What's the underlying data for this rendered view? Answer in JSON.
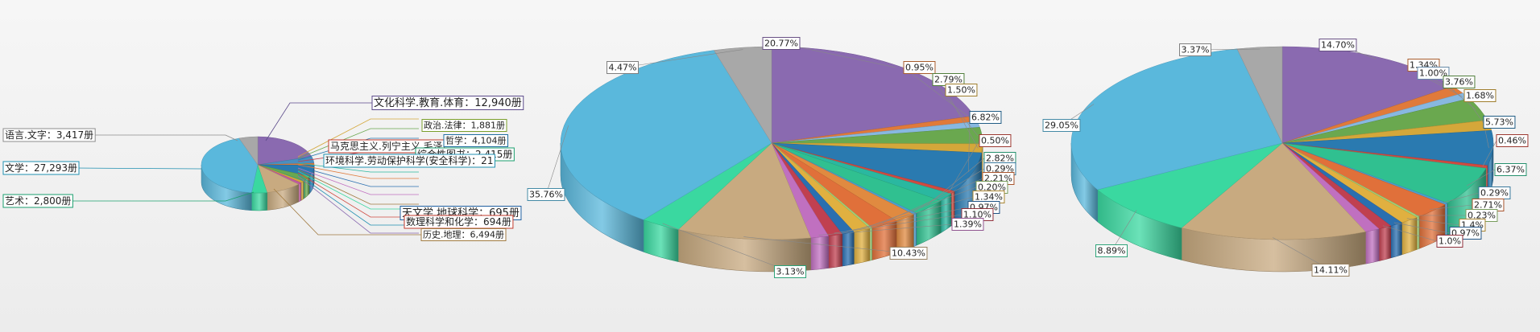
{
  "chart_data": [
    {
      "type": "pie",
      "labels_shown": [
        {
          "text": "文化科学.教育.体育：12,940册",
          "color": "#5b4a8a"
        },
        {
          "text": "语言.文字：3,417册",
          "color": "#8c8c8c"
        },
        {
          "text": "文学：27,293册",
          "color": "#1f8fb0"
        },
        {
          "text": "艺术：2,800册",
          "color": "#1a9e6e"
        },
        {
          "text": "马克思主义.列宁主义.毛泽",
          "color": "#c0392b"
        },
        {
          "text": "综合性图书：2,415册",
          "color": "#1a9e6e"
        },
        {
          "text": "环境科学.劳动保护科学(安全科学)：21",
          "color": "#1f8fb0"
        },
        {
          "text": "政治.法律：1,881册",
          "color": "#7a9e2a"
        },
        {
          "text": "哲学：4,104册",
          "color": "#1f6fa0"
        },
        {
          "text": "天文学.地球科学：695册",
          "color": "#1f5fa0"
        },
        {
          "text": "数理科学和化学：694册",
          "color": "#c0392b"
        },
        {
          "text": "历史.地理：6,494册",
          "color": "#a07a40"
        }
      ],
      "slices": [
        {
          "label": "文化科学.教育.体育",
          "value": 12940,
          "color": "#8a6ab0"
        },
        {
          "label": "综合性图书",
          "value": 2415,
          "color": "#4a8fc0"
        },
        {
          "label": "马克思主义.列宁主义.毛泽东思想.邓小平理论",
          "value": 700,
          "color": "#e07a3a"
        },
        {
          "label": "哲学",
          "value": 4104,
          "color": "#2a7ab0"
        },
        {
          "label": "政治.法律",
          "value": 1881,
          "color": "#6aa84f"
        },
        {
          "label": "环境科学.劳动保护科学(安全科学)",
          "value": 210,
          "color": "#2ab8a0"
        },
        {
          "label": "天文学.地球科学",
          "value": 695,
          "color": "#d4a73a"
        },
        {
          "label": "数理科学和化学",
          "value": 694,
          "color": "#c05aa0"
        },
        {
          "label": "历史.地理",
          "value": 6494,
          "color": "#c8aa80"
        },
        {
          "label": "艺术",
          "value": 2800,
          "color": "#3ad8a0"
        },
        {
          "label": "文学",
          "value": 27293,
          "color": "#5ab8dc"
        },
        {
          "label": "语言.文字",
          "value": 3417,
          "color": "#a8a8a8"
        }
      ]
    },
    {
      "type": "pie",
      "slices": [
        {
          "label": "20.77%",
          "value": 20.77,
          "color": "#8a6ab0"
        },
        {
          "label": "0.95%",
          "value": 0.95,
          "color": "#e07a3a"
        },
        {
          "label": "",
          "value": 1.0,
          "color": "#88b8e0"
        },
        {
          "label": "2.79%",
          "value": 2.79,
          "color": "#6aa84f"
        },
        {
          "label": "1.50%",
          "value": 1.5,
          "color": "#d4a73a"
        },
        {
          "label": "6.82%",
          "value": 6.82,
          "color": "#2a7ab0"
        },
        {
          "label": "0.50%",
          "value": 0.5,
          "color": "#d04a40"
        },
        {
          "label": "",
          "value": 1.4,
          "color": "#2ab8a0"
        },
        {
          "label": "2.82%",
          "value": 2.82,
          "color": "#30c090"
        },
        {
          "label": "0.29%",
          "value": 0.29,
          "color": "#4aa0d0"
        },
        {
          "label": "",
          "value": 1.7,
          "color": "#e08a40"
        },
        {
          "label": "2.21%",
          "value": 2.21,
          "color": "#e0703a"
        },
        {
          "label": "0.20%",
          "value": 0.2,
          "color": "#9ed07a"
        },
        {
          "label": "1.34%",
          "value": 1.34,
          "color": "#e0b040"
        },
        {
          "label": "0.97%",
          "value": 0.97,
          "color": "#2a6fb0"
        },
        {
          "label": "1.10%",
          "value": 1.1,
          "color": "#c04050"
        },
        {
          "label": "1.39%",
          "value": 1.39,
          "color": "#c070c0"
        },
        {
          "label": "10.43%",
          "value": 10.43,
          "color": "#c8aa80"
        },
        {
          "label": "3.13%",
          "value": 3.13,
          "color": "#3ad8a0"
        },
        {
          "label": "35.76%",
          "value": 35.76,
          "color": "#5ab8dc"
        },
        {
          "label": "4.47%",
          "value": 4.47,
          "color": "#a8a8a8"
        }
      ]
    },
    {
      "type": "pie",
      "slices": [
        {
          "label": "14.70%",
          "value": 14.7,
          "color": "#8a6ab0"
        },
        {
          "label": "1.34%",
          "value": 1.34,
          "color": "#e07a3a"
        },
        {
          "label": "1.00%",
          "value": 1.0,
          "color": "#88b8e0"
        },
        {
          "label": "3.76%",
          "value": 3.76,
          "color": "#6aa84f"
        },
        {
          "label": "1.68%",
          "value": 1.68,
          "color": "#d4a73a"
        },
        {
          "label": "5.73%",
          "value": 5.73,
          "color": "#2a7ab0"
        },
        {
          "label": "0.46%",
          "value": 0.46,
          "color": "#d04a40"
        },
        {
          "label": "6.37%",
          "value": 6.37,
          "color": "#30c090"
        },
        {
          "label": "0.29%",
          "value": 0.29,
          "color": "#4aa0d0"
        },
        {
          "label": "2.71%",
          "value": 2.71,
          "color": "#e0703a"
        },
        {
          "label": "0.23%",
          "value": 0.23,
          "color": "#9ed07a"
        },
        {
          "label": "1.4%",
          "value": 1.4,
          "color": "#e0b040"
        },
        {
          "label": "0.97%",
          "value": 0.97,
          "color": "#2a6fb0"
        },
        {
          "label": "1.0%",
          "value": 1.0,
          "color": "#c04050"
        },
        {
          "label": "",
          "value": 1.1,
          "color": "#c070c0"
        },
        {
          "label": "14.11%",
          "value": 14.11,
          "color": "#c8aa80"
        },
        {
          "label": "8.89%",
          "value": 8.89,
          "color": "#3ad8a0"
        },
        {
          "label": "29.05%",
          "value": 29.05,
          "color": "#5ab8dc"
        },
        {
          "label": "3.37%",
          "value": 3.37,
          "color": "#a8a8a8"
        }
      ]
    }
  ]
}
